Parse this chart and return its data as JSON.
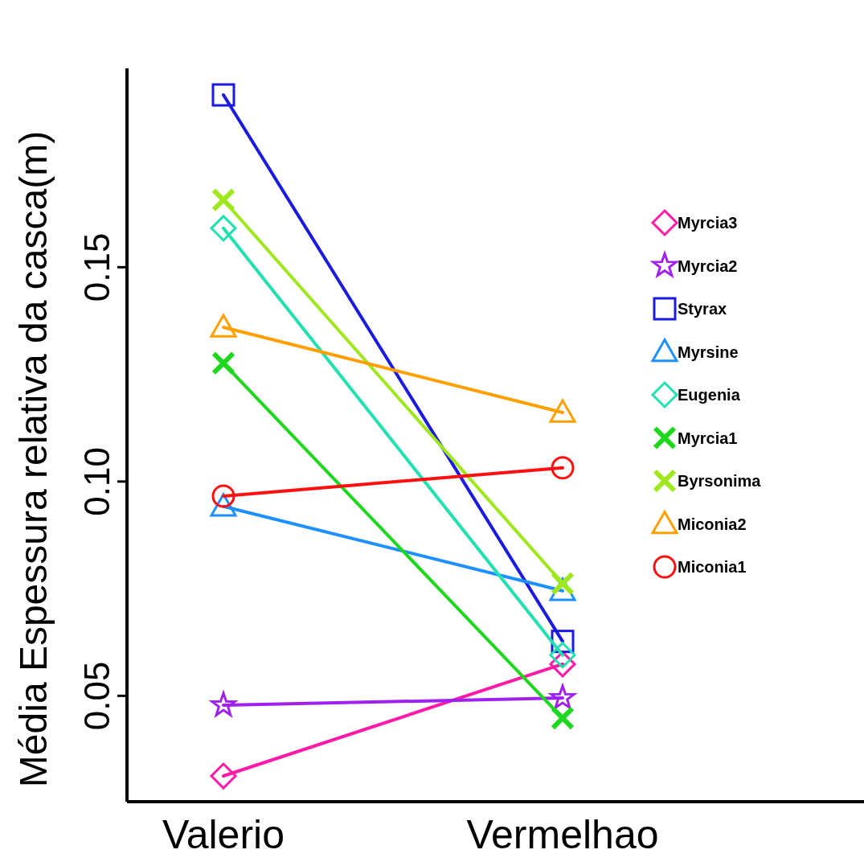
{
  "chart_data": {
    "type": "line",
    "ylabel": "Média Espessura relativa da casca(m)",
    "categories": [
      "Valerio",
      "Vermelhao"
    ],
    "ylim": [
      0.0253,
      0.1964
    ],
    "yticks": [
      0.05,
      {
        "value": 0.1,
        "label": "0.10"
      },
      0.15
    ],
    "legend": "right",
    "grid": false,
    "line_style": "solid",
    "series": [
      {
        "name": "Myrcia3",
        "color": "#ff1aa8",
        "marker": "diamond",
        "values": [
          0.0313,
          0.0574
        ]
      },
      {
        "name": "Myrcia2",
        "color": "#a020f0",
        "marker": "star",
        "values": [
          0.0478,
          0.0495
        ]
      },
      {
        "name": "Styrax",
        "color": "#1a1ae0",
        "marker": "square",
        "values": [
          0.1902,
          0.0627
        ]
      },
      {
        "name": "Myrsine",
        "color": "#1e90ff",
        "marker": "triangle",
        "values": [
          0.0942,
          0.0745
        ]
      },
      {
        "name": "Eugenia",
        "color": "#22e0b0",
        "marker": "diamond",
        "values": [
          0.1591,
          0.0595
        ]
      },
      {
        "name": "Myrcia1",
        "color": "#1ed81e",
        "marker": "cross",
        "values": [
          0.1276,
          0.0448
        ]
      },
      {
        "name": "Byrsonima",
        "color": "#a0e81e",
        "marker": "cross",
        "values": [
          0.1657,
          0.0762
        ]
      },
      {
        "name": "Miconia2",
        "color": "#ffa000",
        "marker": "triangle",
        "values": [
          0.136,
          0.1161
        ]
      },
      {
        "name": "Miconia1",
        "color": "#ff1010",
        "marker": "circle",
        "values": [
          0.0966,
          0.1032
        ]
      }
    ]
  }
}
